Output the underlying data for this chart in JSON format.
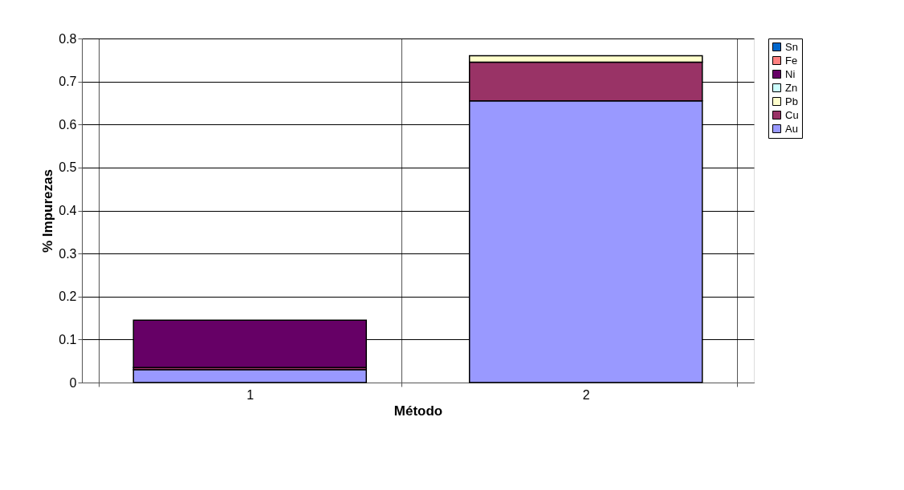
{
  "chart_data": {
    "type": "bar",
    "stacked": true,
    "xlabel": "Método",
    "ylabel": "% Impurezas",
    "categories": [
      "1",
      "2"
    ],
    "series": [
      {
        "name": "Au",
        "color": "#9999ff",
        "values": [
          0.03,
          0.655
        ]
      },
      {
        "name": "Cu",
        "color": "#993366",
        "values": [
          0.005,
          0.09
        ]
      },
      {
        "name": "Pb",
        "color": "#ffffcc",
        "values": [
          0,
          0.015
        ]
      },
      {
        "name": "Zn",
        "color": "#ccffff",
        "values": [
          0,
          0
        ]
      },
      {
        "name": "Ni",
        "color": "#660066",
        "values": [
          0.11,
          0
        ]
      },
      {
        "name": "Fe",
        "color": "#ff8080",
        "values": [
          0,
          0
        ]
      },
      {
        "name": "Sn",
        "color": "#0066cc",
        "values": [
          0,
          0
        ]
      }
    ],
    "ylim": [
      0,
      0.8
    ],
    "yticks": [
      0,
      0.1,
      0.2,
      0.3,
      0.4,
      0.5,
      0.6,
      0.7,
      0.8
    ],
    "grid": true,
    "legend": "right"
  }
}
